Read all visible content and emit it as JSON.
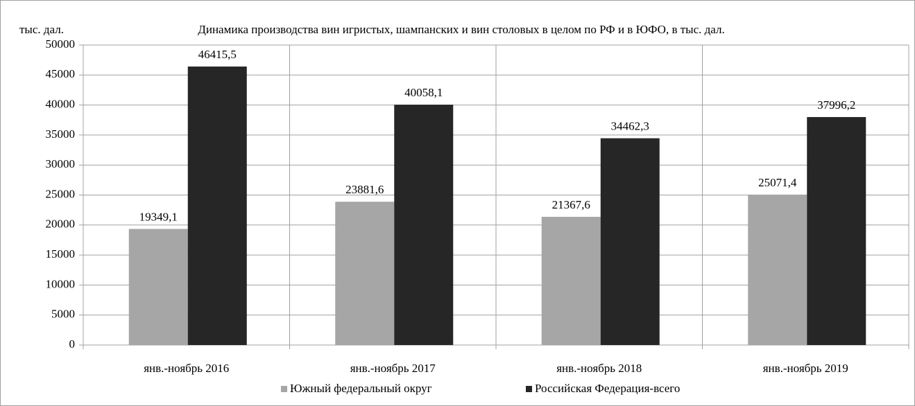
{
  "chart_data": {
    "type": "bar",
    "title": "Динамика производства вин игристых, шампанских и вин столовых в целом по РФ и в ЮФО, в тыс. дал.",
    "y_label": "тыс. дал.",
    "categories": [
      "янв.-ноябрь 2016",
      "янв.-ноябрь 2017",
      "янв.-ноябрь 2018",
      "янв.-ноябрь 2019"
    ],
    "series": [
      {
        "name": "Южный федеральный округ",
        "color": "#a6a6a6",
        "values": [
          19349.1,
          23881.6,
          21367.6,
          25071.4
        ],
        "value_labels": [
          "19349,1",
          "23881,6",
          "21367,6",
          "25071,4"
        ]
      },
      {
        "name": "Российская Федерация-всего",
        "color": "#262626",
        "values": [
          46415.5,
          40058.1,
          34462.3,
          37996.2
        ],
        "value_labels": [
          "46415,5",
          "40058,1",
          "34462,3",
          "37996,2"
        ]
      }
    ],
    "ylim": [
      0,
      50000
    ],
    "yticks": [
      0,
      5000,
      10000,
      15000,
      20000,
      25000,
      30000,
      35000,
      40000,
      45000,
      50000
    ],
    "grid": true,
    "legend": "bottom"
  }
}
